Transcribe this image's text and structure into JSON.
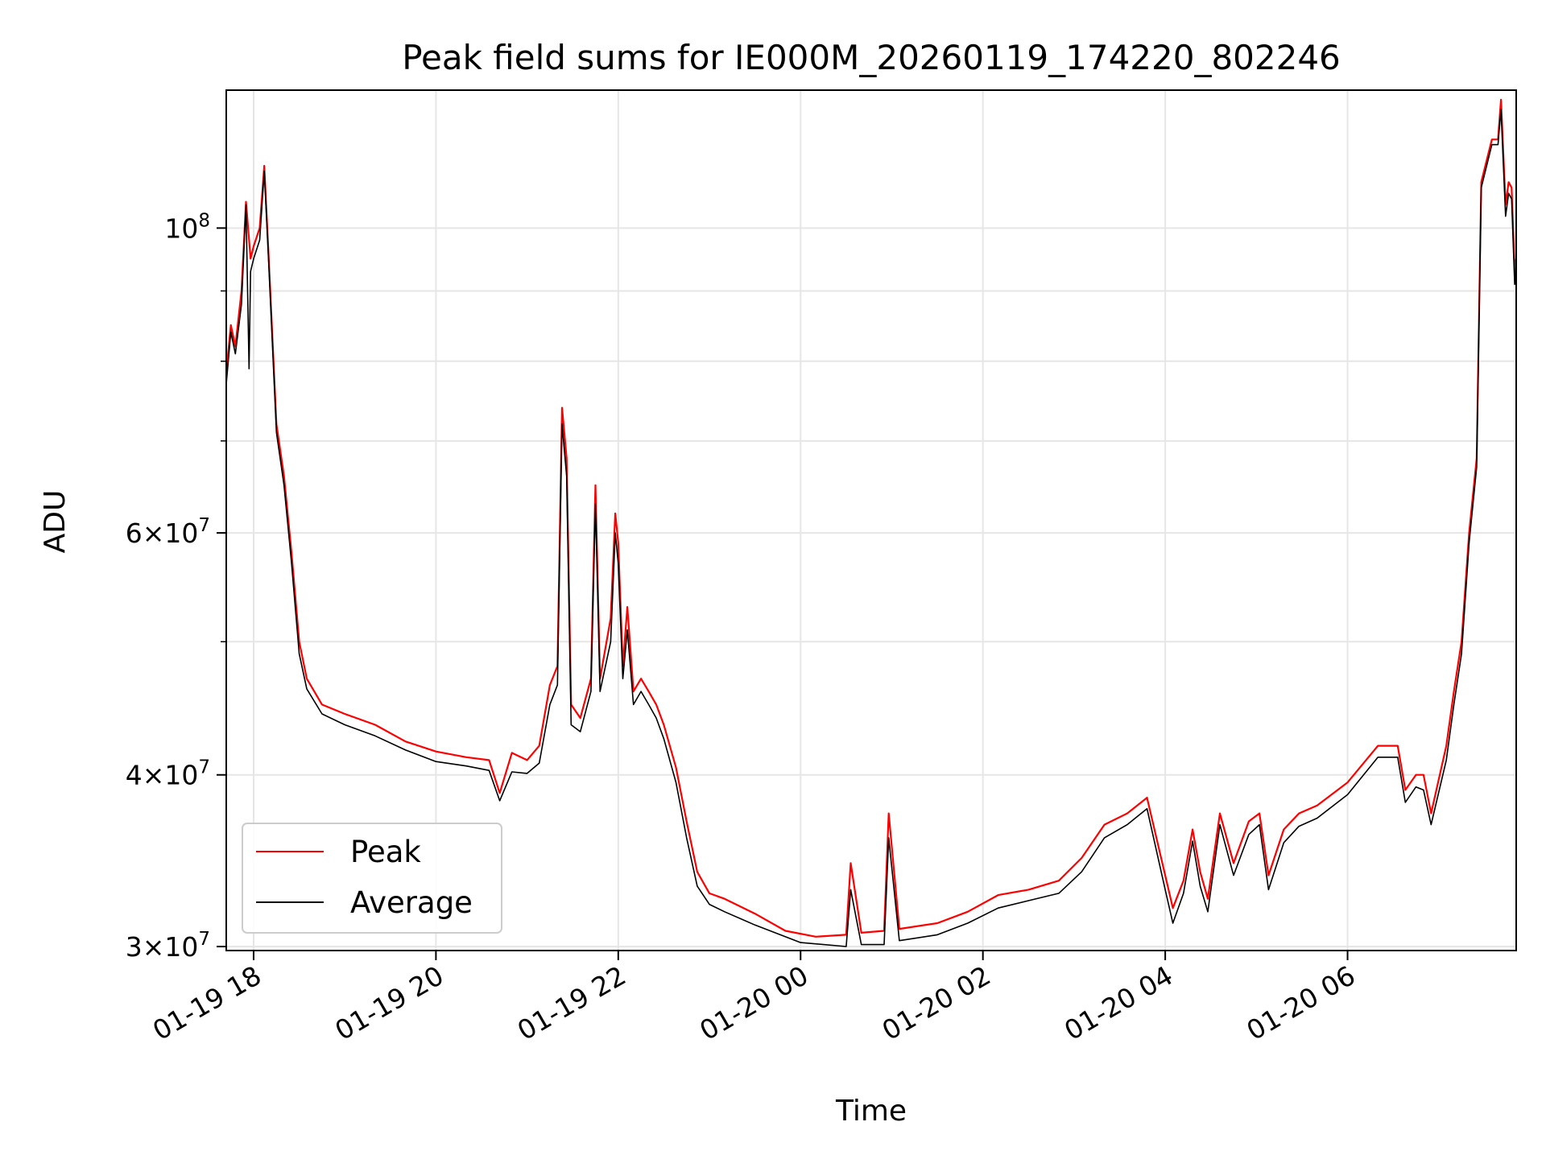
{
  "chart_data": {
    "type": "line",
    "title": "Peak field sums for IE000M_20260119_174220_802246",
    "xlabel": "Time",
    "ylabel": "ADU",
    "y_scale": "log",
    "ylim": [
      29800000,
      126000000
    ],
    "x_range": [
      "2026-01-19 17:42",
      "2026-01-20 07:51"
    ],
    "x_ticks": [
      {
        "label": "01-19 18",
        "time": "2026-01-19 18:00"
      },
      {
        "label": "01-19 20",
        "time": "2026-01-19 20:00"
      },
      {
        "label": "01-19 22",
        "time": "2026-01-19 22:00"
      },
      {
        "label": "01-20 00",
        "time": "2026-01-20 00:00"
      },
      {
        "label": "01-20 02",
        "time": "2026-01-20 02:00"
      },
      {
        "label": "01-20 04",
        "time": "2026-01-20 04:00"
      },
      {
        "label": "01-20 06",
        "time": "2026-01-20 06:00"
      }
    ],
    "y_ticks": [
      {
        "mantissa": "3",
        "exponent": "7",
        "value": 30000000
      },
      {
        "mantissa": "4",
        "exponent": "7",
        "value": 40000000
      },
      {
        "mantissa": "6",
        "exponent": "7",
        "value": 60000000
      },
      {
        "mantissa": "",
        "exponent": "8",
        "value": 100000000
      }
    ],
    "y_minor_gridlines": [
      50000000,
      70000000,
      80000000,
      90000000
    ],
    "grid": true,
    "legend_position": "lower-left",
    "series": [
      {
        "name": "Peak",
        "color": "#ff0000",
        "points": [
          [
            "2026-01-19 17:42",
            78500000
          ],
          [
            "2026-01-19 17:45",
            85000000
          ],
          [
            "2026-01-19 17:48",
            82000000
          ],
          [
            "2026-01-19 17:52",
            90000000
          ],
          [
            "2026-01-19 17:55",
            104500000
          ],
          [
            "2026-01-19 17:58",
            95000000
          ],
          [
            "2026-01-19 18:00",
            97000000
          ],
          [
            "2026-01-19 18:04",
            100000000
          ],
          [
            "2026-01-19 18:07",
            111000000
          ],
          [
            "2026-01-19 18:10",
            95000000
          ],
          [
            "2026-01-19 18:15",
            72000000
          ],
          [
            "2026-01-19 18:20",
            66000000
          ],
          [
            "2026-01-19 18:25",
            58000000
          ],
          [
            "2026-01-19 18:30",
            50000000
          ],
          [
            "2026-01-19 18:35",
            47000000
          ],
          [
            "2026-01-19 18:45",
            45000000
          ],
          [
            "2026-01-19 19:00",
            44300000
          ],
          [
            "2026-01-19 19:20",
            43500000
          ],
          [
            "2026-01-19 19:40",
            42300000
          ],
          [
            "2026-01-19 20:00",
            41600000
          ],
          [
            "2026-01-19 20:20",
            41200000
          ],
          [
            "2026-01-19 20:35",
            41000000
          ],
          [
            "2026-01-19 20:42",
            38800000
          ],
          [
            "2026-01-19 20:50",
            41500000
          ],
          [
            "2026-01-19 21:00",
            41000000
          ],
          [
            "2026-01-19 21:08",
            42000000
          ],
          [
            "2026-01-19 21:15",
            46500000
          ],
          [
            "2026-01-19 21:20",
            48000000
          ],
          [
            "2026-01-19 21:23",
            74000000
          ],
          [
            "2026-01-19 21:26",
            68000000
          ],
          [
            "2026-01-19 21:29",
            45000000
          ],
          [
            "2026-01-19 21:35",
            44000000
          ],
          [
            "2026-01-19 21:42",
            47000000
          ],
          [
            "2026-01-19 21:45",
            65000000
          ],
          [
            "2026-01-19 21:48",
            47000000
          ],
          [
            "2026-01-19 21:55",
            52000000
          ],
          [
            "2026-01-19 21:58",
            62000000
          ],
          [
            "2026-01-19 22:00",
            59000000
          ],
          [
            "2026-01-19 22:03",
            48000000
          ],
          [
            "2026-01-19 22:06",
            53000000
          ],
          [
            "2026-01-19 22:10",
            46000000
          ],
          [
            "2026-01-19 22:15",
            47000000
          ],
          [
            "2026-01-19 22:20",
            46000000
          ],
          [
            "2026-01-19 22:25",
            45000000
          ],
          [
            "2026-01-19 22:30",
            43500000
          ],
          [
            "2026-01-19 22:38",
            40500000
          ],
          [
            "2026-01-19 22:45",
            37000000
          ],
          [
            "2026-01-19 22:52",
            34000000
          ],
          [
            "2026-01-19 23:00",
            32800000
          ],
          [
            "2026-01-19 23:10",
            32500000
          ],
          [
            "2026-01-19 23:30",
            31700000
          ],
          [
            "2026-01-19 23:50",
            30800000
          ],
          [
            "2026-01-20 00:10",
            30500000
          ],
          [
            "2026-01-20 00:30",
            30600000
          ],
          [
            "2026-01-20 00:33",
            34500000
          ],
          [
            "2026-01-20 00:40",
            30700000
          ],
          [
            "2026-01-20 00:55",
            30800000
          ],
          [
            "2026-01-20 00:58",
            37500000
          ],
          [
            "2026-01-20 01:05",
            30900000
          ],
          [
            "2026-01-20 01:30",
            31200000
          ],
          [
            "2026-01-20 01:50",
            31800000
          ],
          [
            "2026-01-20 02:10",
            32700000
          ],
          [
            "2026-01-20 02:30",
            33000000
          ],
          [
            "2026-01-20 02:50",
            33500000
          ],
          [
            "2026-01-20 03:05",
            34800000
          ],
          [
            "2026-01-20 03:20",
            36800000
          ],
          [
            "2026-01-20 03:35",
            37500000
          ],
          [
            "2026-01-20 03:48",
            38500000
          ],
          [
            "2026-01-20 04:00",
            33800000
          ],
          [
            "2026-01-20 04:05",
            32000000
          ],
          [
            "2026-01-20 04:12",
            33500000
          ],
          [
            "2026-01-20 04:18",
            36500000
          ],
          [
            "2026-01-20 04:23",
            34000000
          ],
          [
            "2026-01-20 04:28",
            32500000
          ],
          [
            "2026-01-20 04:36",
            37500000
          ],
          [
            "2026-01-20 04:45",
            34500000
          ],
          [
            "2026-01-20 04:55",
            37000000
          ],
          [
            "2026-01-20 05:02",
            37500000
          ],
          [
            "2026-01-20 05:08",
            33800000
          ],
          [
            "2026-01-20 05:18",
            36500000
          ],
          [
            "2026-01-20 05:28",
            37500000
          ],
          [
            "2026-01-20 05:40",
            38000000
          ],
          [
            "2026-01-20 06:00",
            39500000
          ],
          [
            "2026-01-20 06:20",
            42000000
          ],
          [
            "2026-01-20 06:33",
            42000000
          ],
          [
            "2026-01-20 06:38",
            39000000
          ],
          [
            "2026-01-20 06:45",
            40000000
          ],
          [
            "2026-01-20 06:50",
            40000000
          ],
          [
            "2026-01-20 06:55",
            37500000
          ],
          [
            "2026-01-20 07:05",
            42000000
          ],
          [
            "2026-01-20 07:10",
            46000000
          ],
          [
            "2026-01-20 07:15",
            50000000
          ],
          [
            "2026-01-20 07:20",
            60000000
          ],
          [
            "2026-01-20 07:25",
            68000000
          ],
          [
            "2026-01-20 07:28",
            108000000
          ],
          [
            "2026-01-20 07:35",
            116000000
          ],
          [
            "2026-01-20 07:39",
            116000000
          ],
          [
            "2026-01-20 07:41",
            124000000
          ],
          [
            "2026-01-20 07:44",
            104000000
          ],
          [
            "2026-01-20 07:46",
            108000000
          ],
          [
            "2026-01-20 07:48",
            107000000
          ],
          [
            "2026-01-20 07:50",
            93000000
          ],
          [
            "2026-01-20 07:51",
            95000000
          ]
        ]
      },
      {
        "name": "Average",
        "color": "#000000",
        "points": [
          [
            "2026-01-19 17:42",
            77000000
          ],
          [
            "2026-01-19 17:45",
            84000000
          ],
          [
            "2026-01-19 17:48",
            81000000
          ],
          [
            "2026-01-19 17:52",
            88000000
          ],
          [
            "2026-01-19 17:55",
            104000000
          ],
          [
            "2026-01-19 17:57",
            79000000
          ],
          [
            "2026-01-19 17:58",
            93000000
          ],
          [
            "2026-01-19 18:00",
            95000000
          ],
          [
            "2026-01-19 18:04",
            98000000
          ],
          [
            "2026-01-19 18:07",
            110000000
          ],
          [
            "2026-01-19 18:10",
            94000000
          ],
          [
            "2026-01-19 18:15",
            71000000
          ],
          [
            "2026-01-19 18:20",
            65000000
          ],
          [
            "2026-01-19 18:25",
            57000000
          ],
          [
            "2026-01-19 18:30",
            49000000
          ],
          [
            "2026-01-19 18:35",
            46200000
          ],
          [
            "2026-01-19 18:45",
            44300000
          ],
          [
            "2026-01-19 19:00",
            43500000
          ],
          [
            "2026-01-19 19:20",
            42700000
          ],
          [
            "2026-01-19 19:40",
            41700000
          ],
          [
            "2026-01-19 20:00",
            40900000
          ],
          [
            "2026-01-19 20:20",
            40600000
          ],
          [
            "2026-01-19 20:35",
            40300000
          ],
          [
            "2026-01-19 20:42",
            38300000
          ],
          [
            "2026-01-19 20:50",
            40200000
          ],
          [
            "2026-01-19 21:00",
            40100000
          ],
          [
            "2026-01-19 21:08",
            40800000
          ],
          [
            "2026-01-19 21:15",
            45000000
          ],
          [
            "2026-01-19 21:20",
            46500000
          ],
          [
            "2026-01-19 21:23",
            72000000
          ],
          [
            "2026-01-19 21:26",
            66000000
          ],
          [
            "2026-01-19 21:29",
            43500000
          ],
          [
            "2026-01-19 21:35",
            43000000
          ],
          [
            "2026-01-19 21:42",
            46000000
          ],
          [
            "2026-01-19 21:45",
            63000000
          ],
          [
            "2026-01-19 21:48",
            46000000
          ],
          [
            "2026-01-19 21:55",
            50000000
          ],
          [
            "2026-01-19 21:58",
            60000000
          ],
          [
            "2026-01-19 22:00",
            57000000
          ],
          [
            "2026-01-19 22:03",
            47000000
          ],
          [
            "2026-01-19 22:06",
            51000000
          ],
          [
            "2026-01-19 22:10",
            45000000
          ],
          [
            "2026-01-19 22:15",
            46000000
          ],
          [
            "2026-01-19 22:20",
            45000000
          ],
          [
            "2026-01-19 22:25",
            44000000
          ],
          [
            "2026-01-19 22:30",
            42500000
          ],
          [
            "2026-01-19 22:38",
            39500000
          ],
          [
            "2026-01-19 22:45",
            36000000
          ],
          [
            "2026-01-19 22:52",
            33200000
          ],
          [
            "2026-01-19 23:00",
            32200000
          ],
          [
            "2026-01-19 23:10",
            31800000
          ],
          [
            "2026-01-19 23:30",
            31100000
          ],
          [
            "2026-01-20 00:00",
            30200000
          ],
          [
            "2026-01-20 00:30",
            30000000
          ],
          [
            "2026-01-20 00:33",
            33000000
          ],
          [
            "2026-01-20 00:40",
            30100000
          ],
          [
            "2026-01-20 00:55",
            30100000
          ],
          [
            "2026-01-20 00:58",
            36000000
          ],
          [
            "2026-01-20 01:05",
            30300000
          ],
          [
            "2026-01-20 01:30",
            30600000
          ],
          [
            "2026-01-20 01:50",
            31200000
          ],
          [
            "2026-01-20 02:10",
            32000000
          ],
          [
            "2026-01-20 02:30",
            32400000
          ],
          [
            "2026-01-20 02:50",
            32800000
          ],
          [
            "2026-01-20 03:05",
            34000000
          ],
          [
            "2026-01-20 03:20",
            36000000
          ],
          [
            "2026-01-20 03:35",
            36800000
          ],
          [
            "2026-01-20 03:48",
            37800000
          ],
          [
            "2026-01-20 04:00",
            33000000
          ],
          [
            "2026-01-20 04:05",
            31200000
          ],
          [
            "2026-01-20 04:12",
            32800000
          ],
          [
            "2026-01-20 04:18",
            35800000
          ],
          [
            "2026-01-20 04:23",
            33200000
          ],
          [
            "2026-01-20 04:28",
            31800000
          ],
          [
            "2026-01-20 04:36",
            36800000
          ],
          [
            "2026-01-20 04:45",
            33800000
          ],
          [
            "2026-01-20 04:55",
            36200000
          ],
          [
            "2026-01-20 05:02",
            36800000
          ],
          [
            "2026-01-20 05:08",
            33000000
          ],
          [
            "2026-01-20 05:18",
            35700000
          ],
          [
            "2026-01-20 05:28",
            36700000
          ],
          [
            "2026-01-20 05:40",
            37200000
          ],
          [
            "2026-01-20 06:00",
            38700000
          ],
          [
            "2026-01-20 06:20",
            41200000
          ],
          [
            "2026-01-20 06:33",
            41200000
          ],
          [
            "2026-01-20 06:38",
            38200000
          ],
          [
            "2026-01-20 06:45",
            39200000
          ],
          [
            "2026-01-20 06:50",
            39000000
          ],
          [
            "2026-01-20 06:55",
            36800000
          ],
          [
            "2026-01-20 07:05",
            41000000
          ],
          [
            "2026-01-20 07:10",
            45000000
          ],
          [
            "2026-01-20 07:15",
            49000000
          ],
          [
            "2026-01-20 07:20",
            59000000
          ],
          [
            "2026-01-20 07:25",
            67000000
          ],
          [
            "2026-01-20 07:28",
            107000000
          ],
          [
            "2026-01-20 07:35",
            115000000
          ],
          [
            "2026-01-20 07:39",
            115000000
          ],
          [
            "2026-01-20 07:41",
            122000000
          ],
          [
            "2026-01-20 07:44",
            102000000
          ],
          [
            "2026-01-20 07:46",
            106000000
          ],
          [
            "2026-01-20 07:48",
            105000000
          ],
          [
            "2026-01-20 07:50",
            91000000
          ],
          [
            "2026-01-20 07:51",
            94000000
          ]
        ]
      }
    ]
  }
}
